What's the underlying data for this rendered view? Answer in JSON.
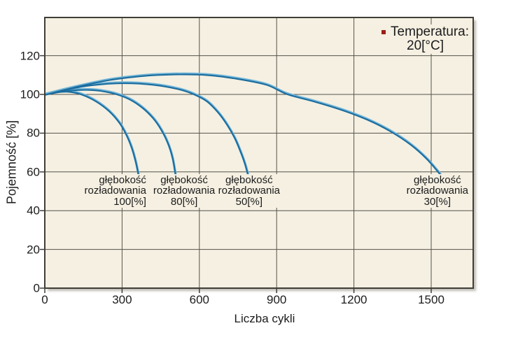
{
  "chart_data": {
    "type": "line",
    "title": "",
    "xlabel": "Liczba cykli",
    "ylabel": "Pojemność [%]",
    "x_ticks": [
      0,
      300,
      600,
      900,
      1200,
      1500
    ],
    "y_ticks": [
      0,
      20,
      40,
      60,
      80,
      100,
      120
    ],
    "xlim": [
      0,
      1663
    ],
    "ylim": [
      0,
      140
    ],
    "grid": true,
    "legend": {
      "label": "Temperatura:",
      "value": "20[°C]",
      "marker_color": "#9b1f18",
      "position": "top-right"
    },
    "series": [
      {
        "name": "głębokość rozładowania 100[%]",
        "depth_of_discharge_pct": 100,
        "points": [
          [
            0,
            100
          ],
          [
            45,
            101.2
          ],
          [
            90,
            101.6
          ],
          [
            140,
            100.3
          ],
          [
            200,
            96.5
          ],
          [
            250,
            91.5
          ],
          [
            290,
            85.5
          ],
          [
            318,
            79
          ],
          [
            338,
            72.5
          ],
          [
            353,
            65.5
          ],
          [
            364,
            58.5
          ]
        ]
      },
      {
        "name": "głębokość rozładowania 80[%]",
        "depth_of_discharge_pct": 80,
        "points": [
          [
            0,
            100
          ],
          [
            60,
            101.6
          ],
          [
            130,
            102.5
          ],
          [
            200,
            102.3
          ],
          [
            270,
            100.6
          ],
          [
            330,
            97.6
          ],
          [
            380,
            93.2
          ],
          [
            420,
            88
          ],
          [
            452,
            82
          ],
          [
            478,
            75
          ],
          [
            496,
            67.5
          ],
          [
            508,
            58.5
          ]
        ]
      },
      {
        "name": "głębokość rozładowania 50[%]",
        "depth_of_discharge_pct": 50,
        "points": [
          [
            0,
            100
          ],
          [
            80,
            102.6
          ],
          [
            180,
            104.9
          ],
          [
            300,
            106
          ],
          [
            420,
            105.2
          ],
          [
            520,
            102.9
          ],
          [
            580,
            100.2
          ],
          [
            630,
            96.6
          ],
          [
            672,
            91
          ],
          [
            708,
            84.5
          ],
          [
            738,
            77.5
          ],
          [
            762,
            70
          ],
          [
            778,
            64
          ],
          [
            789,
            58.5
          ]
        ]
      },
      {
        "name": "głębokość rozładowania 30[%]",
        "depth_of_discharge_pct": 30,
        "points": [
          [
            0,
            100
          ],
          [
            120,
            104
          ],
          [
            250,
            107.6
          ],
          [
            380,
            109.7
          ],
          [
            500,
            110.5
          ],
          [
            620,
            110.3
          ],
          [
            740,
            108.4
          ],
          [
            860,
            105.2
          ],
          [
            940,
            100.4
          ],
          [
            1050,
            96.4
          ],
          [
            1150,
            92.3
          ],
          [
            1250,
            87.3
          ],
          [
            1340,
            81.3
          ],
          [
            1420,
            74.3
          ],
          [
            1480,
            67.3
          ],
          [
            1525,
            60.5
          ],
          [
            1542,
            57.5
          ]
        ]
      }
    ],
    "annotations": [
      {
        "lines": [
          "głębokość",
          "rozładowania",
          "100[%]"
        ],
        "anchor_cycles": 402,
        "y_value": 59,
        "align": "right"
      },
      {
        "lines": [
          "głębokość",
          "rozładowania",
          "80[%]"
        ],
        "anchor_cycles": 541,
        "y_value": 59,
        "align": "center"
      },
      {
        "lines": [
          "głębokość",
          "rozładowania",
          "50[%]"
        ],
        "anchor_cycles": 793,
        "y_value": 59,
        "align": "center"
      },
      {
        "lines": [
          "głębokość",
          "rozładowania",
          "30[%]"
        ],
        "anchor_cycles": 1524,
        "y_value": 59,
        "align": "center"
      }
    ],
    "colors": {
      "curve": "#1a6c9e",
      "curve_highlight": "#72b5d8",
      "plot_bg": "#f5f0e2",
      "grid": "#55534b",
      "border": "#3f3e39",
      "text": "#1c1c1c",
      "shadow": "#aaa79c"
    }
  }
}
